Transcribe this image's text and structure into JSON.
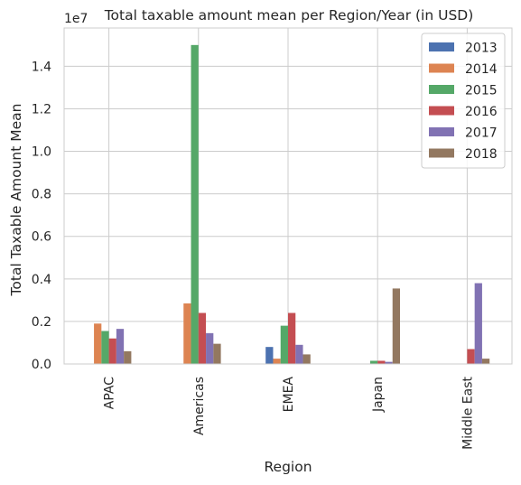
{
  "chart_data": {
    "type": "bar",
    "title": "Total taxable amount mean per Region/Year (in USD)",
    "xlabel": "Region",
    "ylabel": "Total Taxable Amount Mean",
    "y_multiplier_label": "1e7",
    "categories": [
      "APAC",
      "Americas",
      "EMEA",
      "Japan",
      "Middle East"
    ],
    "ylim": [
      0,
      1.58
    ],
    "yticks": [
      0.0,
      0.2,
      0.4,
      0.6,
      0.8,
      1.0,
      1.2,
      1.4
    ],
    "ytick_labels": [
      "0.0",
      "0.2",
      "0.4",
      "0.6",
      "0.8",
      "1.0",
      "1.2",
      "1.4"
    ],
    "grid": true,
    "legend_position": "top-right",
    "series": [
      {
        "name": "2013",
        "color": "#4c72b0",
        "values": [
          0,
          0,
          0.08,
          0,
          0
        ]
      },
      {
        "name": "2014",
        "color": "#dd8452",
        "values": [
          0.19,
          0.285,
          0.025,
          0,
          0
        ]
      },
      {
        "name": "2015",
        "color": "#55a868",
        "values": [
          0.155,
          1.5,
          0.18,
          0.015,
          0
        ]
      },
      {
        "name": "2016",
        "color": "#c44e52",
        "values": [
          0.12,
          0.24,
          0.24,
          0.015,
          0.07
        ]
      },
      {
        "name": "2017",
        "color": "#8172b3",
        "values": [
          0.165,
          0.145,
          0.09,
          0.01,
          0.38
        ]
      },
      {
        "name": "2018",
        "color": "#937860",
        "values": [
          0.06,
          0.095,
          0.045,
          0.355,
          0.025
        ]
      }
    ]
  }
}
